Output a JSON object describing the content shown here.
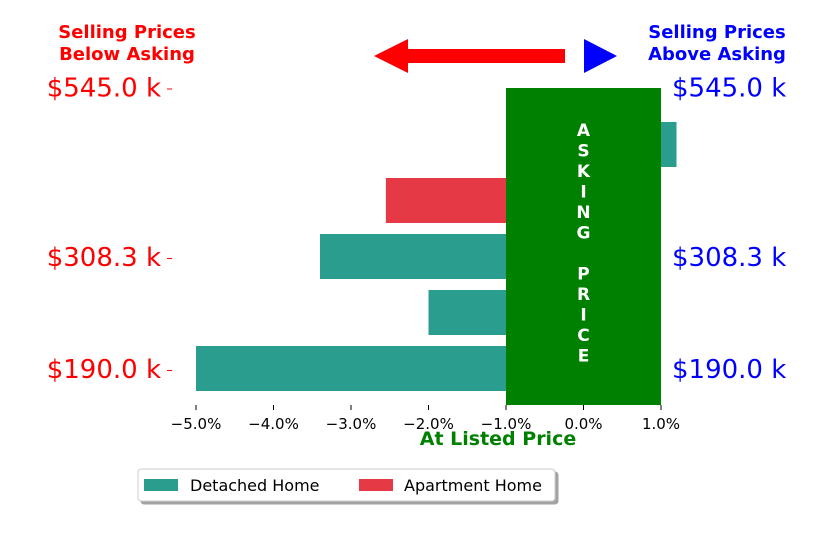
{
  "chart_data": {
    "type": "bar",
    "orientation": "horizontal",
    "title": "",
    "xlabel": "At Listed Price",
    "ylabel": "",
    "xlim": [
      -5.4,
      1.0
    ],
    "xticks": [
      -5.0,
      -4.0,
      -3.0,
      -2.0,
      -1.0,
      0.0,
      1.0
    ],
    "xtick_labels": [
      "−5.0%",
      "−4.0%",
      "−3.0%",
      "−2.0%",
      "−1.0%",
      "0.0%",
      "1.0%"
    ],
    "grid": false,
    "bars": [
      {
        "series": "Detached Home",
        "row": 0,
        "value": 1.2
      },
      {
        "series": "Apartment Home",
        "row": 1,
        "value": -2.55
      },
      {
        "series": "Detached Home",
        "row": 2,
        "value": -3.4
      },
      {
        "series": "Detached Home",
        "row": 3,
        "value": -2.0
      },
      {
        "series": "Detached Home",
        "row": 4,
        "value": -5.0
      }
    ],
    "row_count": 5,
    "left_price_labels": [
      {
        "row": 0,
        "text": "$545.0 k"
      },
      {
        "row": 2,
        "text": "$308.3 k"
      },
      {
        "row": 4,
        "text": "$190.0 k"
      }
    ],
    "right_price_labels": [
      {
        "row": 0,
        "text": "$545.0 k"
      },
      {
        "row": 2,
        "text": "$308.3 k"
      },
      {
        "row": 4,
        "text": "$190.0 k"
      }
    ],
    "asking_band": {
      "from": -1.0,
      "to": 1.0,
      "label": "ASKING PRICE",
      "color": "#008000"
    },
    "below_label": [
      "Selling Prices",
      "Below Asking"
    ],
    "above_label": [
      "Selling Prices",
      "Above Asking"
    ],
    "series": [
      {
        "name": "Detached Home",
        "color": "#2a9d8f"
      },
      {
        "name": "Apartment Home",
        "color": "#e63946"
      }
    ],
    "legend_position": "bottom-center",
    "colors": {
      "below": "#ff0000",
      "above": "#0000ff",
      "xlabel": "#008000",
      "arrow_left": "#ff0000",
      "arrow_right": "#0000ff"
    }
  }
}
